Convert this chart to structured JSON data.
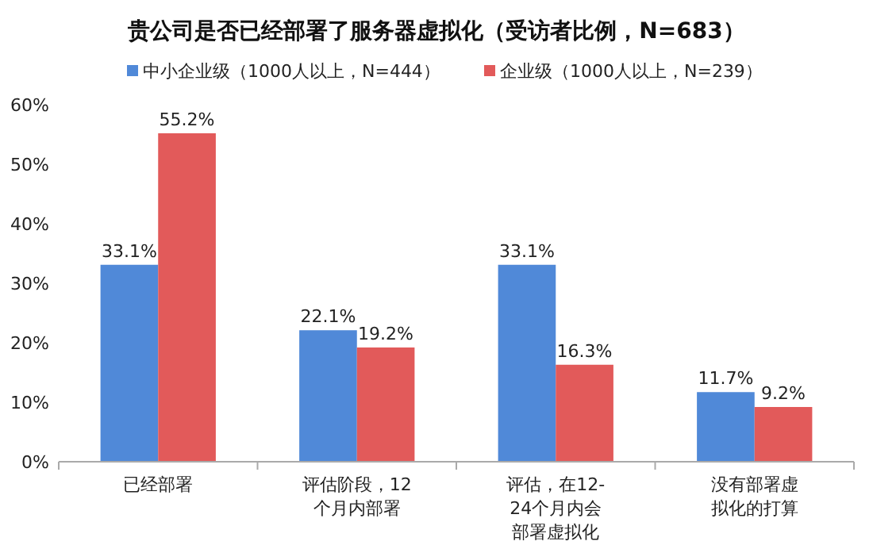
{
  "chart_data": {
    "type": "bar",
    "title": "贵公司是否已经部署了服务器虚拟化（受访者比例，N=683）",
    "categories": [
      "已经部署",
      "评估阶段，12个月内部署",
      "评估，在12-24个月内会部署虚拟化",
      "没有部署虚拟化的打算"
    ],
    "series": [
      {
        "name": "中小企业级（1000人以上，N=444）",
        "color": "#5089d8",
        "values": [
          33.1,
          22.1,
          33.1,
          11.7
        ],
        "value_labels": [
          "33.1%",
          "22.1%",
          "33.1%",
          "11.7%"
        ]
      },
      {
        "name": "企业级（1000人以上，N=239）",
        "color": "#e25a5a",
        "values": [
          55.2,
          19.2,
          16.3,
          9.2
        ],
        "value_labels": [
          "55.2%",
          "19.2%",
          "16.3%",
          "9.2%"
        ]
      }
    ],
    "ylim": [
      0,
      60
    ],
    "yticks": [
      {
        "value": 0,
        "label": "0%"
      },
      {
        "value": 10,
        "label": "10%"
      },
      {
        "value": 20,
        "label": "20%"
      },
      {
        "value": 30,
        "label": "30%"
      },
      {
        "value": 40,
        "label": "40%"
      },
      {
        "value": 50,
        "label": "50%"
      },
      {
        "value": 60,
        "label": "60%"
      }
    ],
    "legend": "top",
    "grid": false
  }
}
